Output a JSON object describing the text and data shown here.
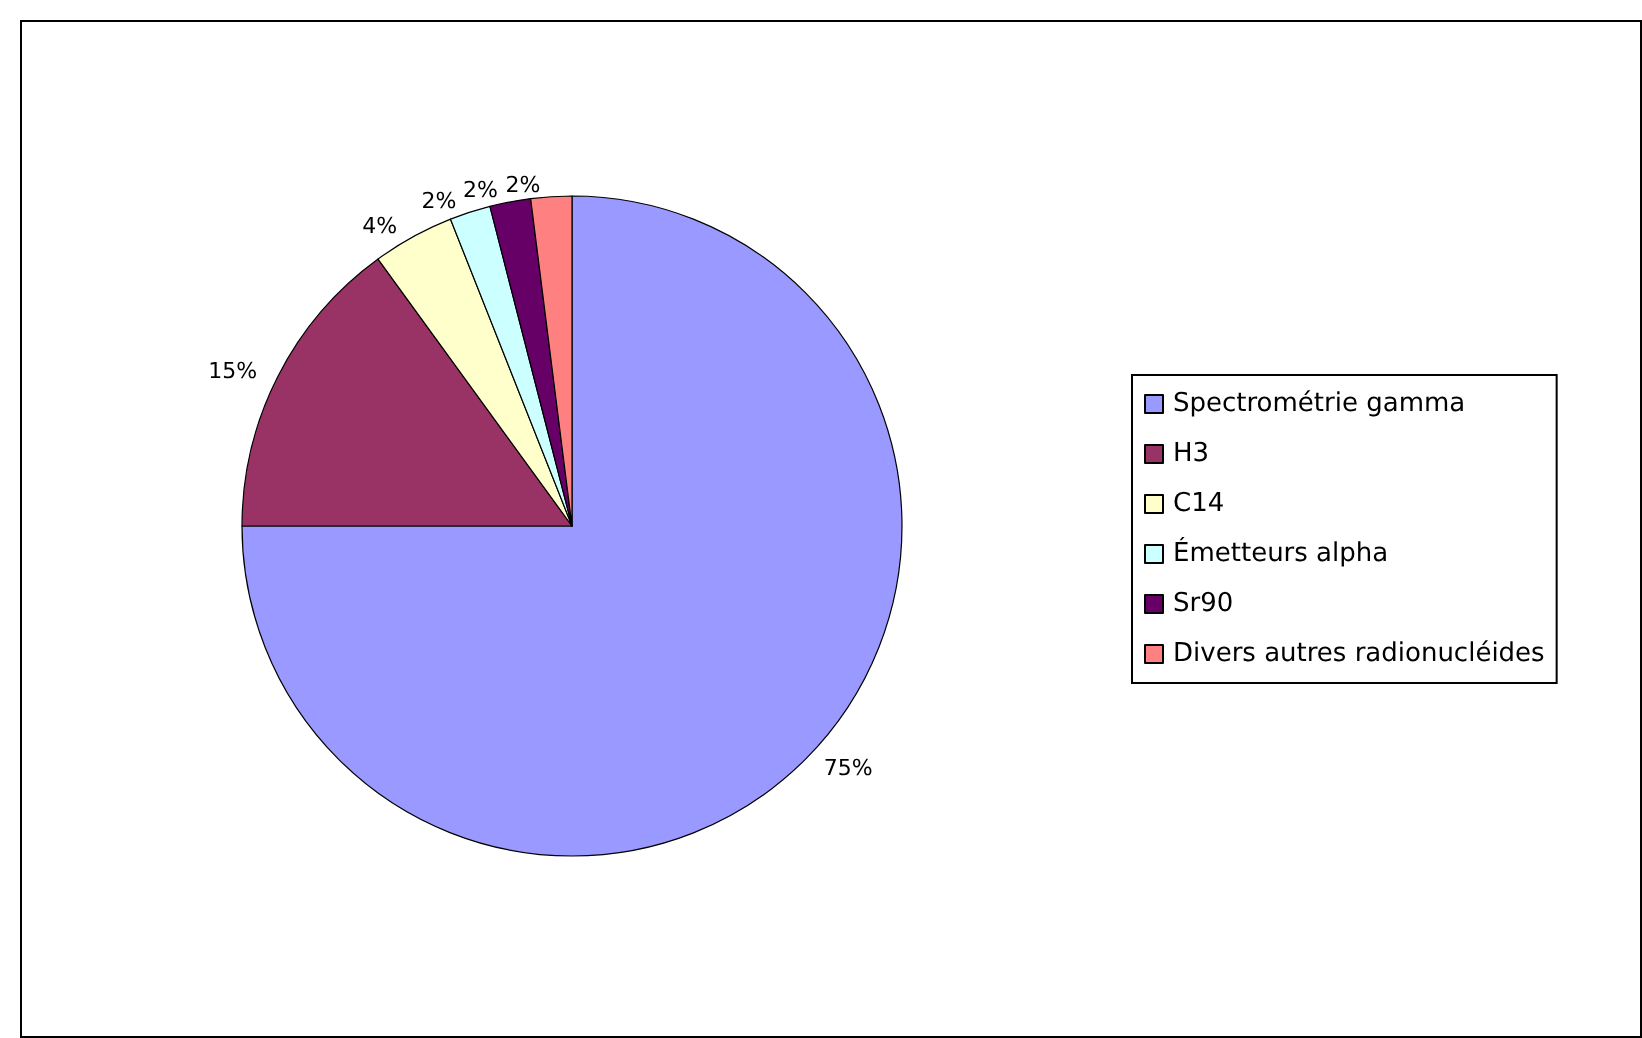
{
  "chart_data": {
    "type": "pie",
    "categories": [
      "Spectrométrie gamma",
      "H3",
      "C14",
      "Émetteurs alpha",
      "Sr90",
      "Divers autres radionucléides"
    ],
    "values": [
      75,
      15,
      4,
      2,
      2,
      2
    ],
    "colors": [
      "#9999ff",
      "#993366",
      "#ffffcc",
      "#ccffff",
      "#660066",
      "#ff8080"
    ],
    "value_labels": [
      "75%",
      "15%",
      "4%",
      "2%",
      "2%",
      "2%"
    ],
    "legend": "right"
  }
}
